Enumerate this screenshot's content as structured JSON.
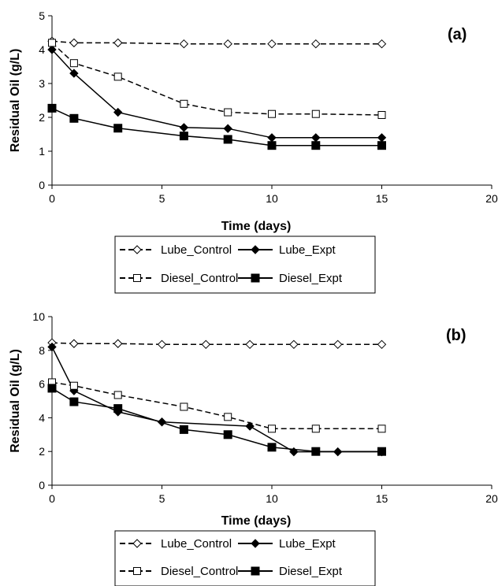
{
  "colors": {
    "ink": "#000000",
    "background": "#ffffff",
    "hollow": "#ffffff"
  },
  "chart_data": [
    {
      "type": "line",
      "panel_label": "(a)",
      "xlabel": "Time (days)",
      "ylabel": "Residual Oil (g/L)",
      "xlim": [
        0,
        20
      ],
      "ylim": [
        0,
        5
      ],
      "xticks": [
        0,
        5,
        10,
        15,
        20
      ],
      "yticks": [
        0,
        1,
        2,
        3,
        4,
        5
      ],
      "grid": false,
      "legend_position": "bottom",
      "series": [
        {
          "name": "Lube_Control",
          "line": "dashed",
          "marker": "diamond",
          "filled": false,
          "x": [
            0,
            1,
            3,
            6,
            8,
            10,
            12,
            15
          ],
          "y": [
            4.25,
            4.2,
            4.2,
            4.17,
            4.17,
            4.17,
            4.17,
            4.17
          ]
        },
        {
          "name": "Lube_Expt",
          "line": "solid",
          "marker": "diamond",
          "filled": true,
          "x": [
            0,
            1,
            3,
            6,
            8,
            10,
            12,
            15
          ],
          "y": [
            4.0,
            3.3,
            2.15,
            1.7,
            1.67,
            1.4,
            1.4,
            1.4
          ]
        },
        {
          "name": "Diesel_Control",
          "line": "dashed",
          "marker": "square",
          "filled": false,
          "x": [
            0,
            1,
            3,
            6,
            8,
            10,
            12,
            15
          ],
          "y": [
            4.2,
            3.6,
            3.2,
            2.4,
            2.15,
            2.1,
            2.1,
            2.07
          ]
        },
        {
          "name": "Diesel_Expt",
          "line": "solid",
          "marker": "square",
          "filled": true,
          "x": [
            0,
            1,
            3,
            6,
            8,
            10,
            12,
            15
          ],
          "y": [
            2.27,
            1.97,
            1.68,
            1.45,
            1.35,
            1.17,
            1.17,
            1.17
          ]
        }
      ]
    },
    {
      "type": "line",
      "panel_label": "(b)",
      "xlabel": "Time (days)",
      "ylabel": "Residual Oil (g/L)",
      "xlim": [
        0,
        20
      ],
      "ylim": [
        0,
        10
      ],
      "xticks": [
        0,
        5,
        10,
        15,
        20
      ],
      "yticks": [
        0,
        2,
        4,
        6,
        8,
        10
      ],
      "grid": false,
      "legend_position": "bottom",
      "series": [
        {
          "name": "Lube_Control",
          "line": "dashed",
          "marker": "diamond",
          "filled": false,
          "x": [
            0,
            1,
            3,
            5,
            7,
            9,
            11,
            13,
            15
          ],
          "y": [
            8.45,
            8.4,
            8.4,
            8.35,
            8.35,
            8.35,
            8.35,
            8.35,
            8.35
          ]
        },
        {
          "name": "Lube_Expt",
          "line": "solid",
          "marker": "diamond",
          "filled": true,
          "x": [
            0,
            1,
            3,
            5,
            9,
            11,
            13,
            15
          ],
          "y": [
            8.2,
            5.6,
            4.35,
            3.75,
            3.5,
            1.98,
            1.98,
            1.98
          ]
        },
        {
          "name": "Diesel_Control",
          "line": "dashed",
          "marker": "square",
          "filled": false,
          "x": [
            0,
            1,
            3,
            6,
            8,
            10,
            12,
            15
          ],
          "y": [
            6.1,
            5.9,
            5.35,
            4.65,
            4.05,
            3.35,
            3.35,
            3.35
          ]
        },
        {
          "name": "Diesel_Expt",
          "line": "solid",
          "marker": "square",
          "filled": true,
          "x": [
            0,
            1,
            3,
            6,
            8,
            10,
            12,
            15
          ],
          "y": [
            5.75,
            4.95,
            4.55,
            3.3,
            3.0,
            2.25,
            2.0,
            2.0
          ]
        }
      ]
    }
  ]
}
